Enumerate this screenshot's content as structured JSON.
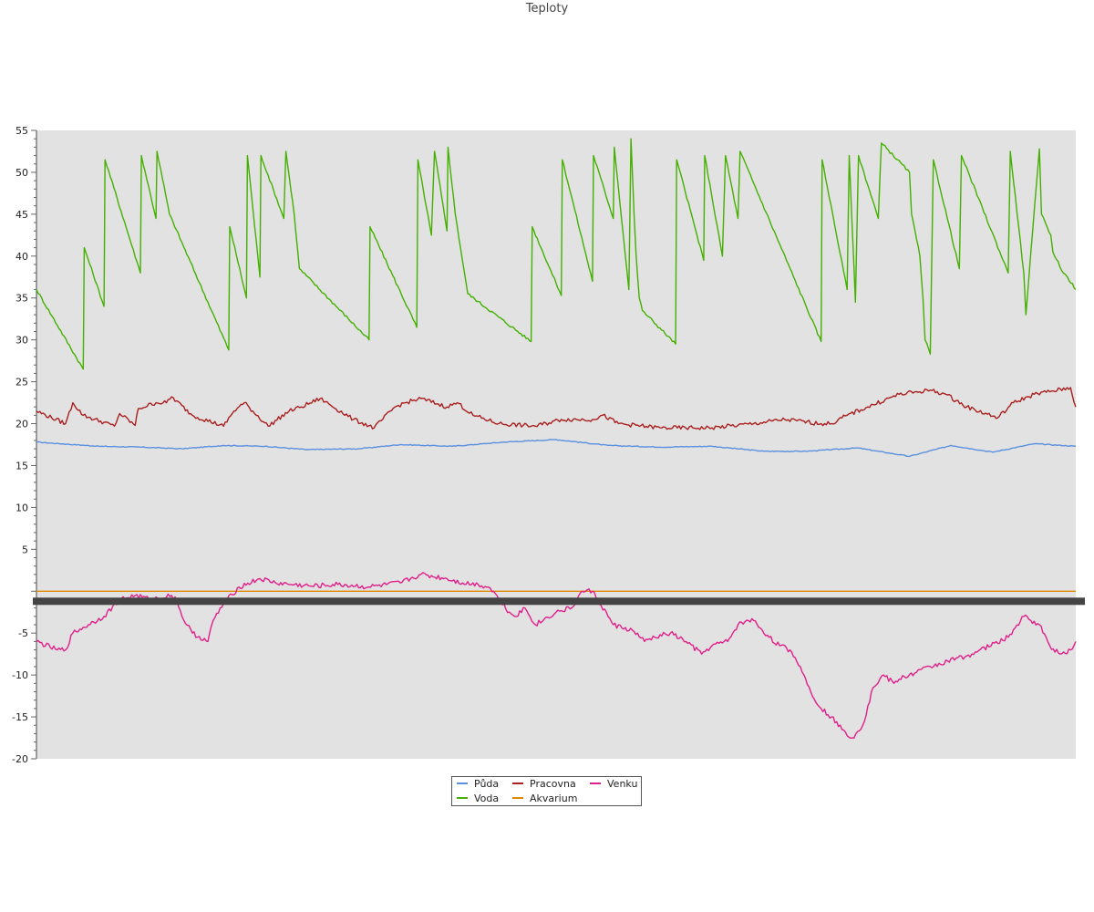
{
  "chart_data": {
    "type": "line",
    "title": "Teploty",
    "xlabel": "",
    "ylabel": "",
    "ylim": [
      -20,
      55
    ],
    "yticks": [
      55,
      50,
      45,
      40,
      35,
      30,
      25,
      20,
      15,
      10,
      5,
      -5,
      -10,
      -15,
      -20
    ],
    "grid": false,
    "legend_position": "bottom",
    "x_index_range": [
      0,
      100
    ],
    "series": [
      {
        "name": "Půda",
        "color": "#5b8fe0",
        "x": [
          0,
          6,
          10,
          14,
          18,
          22,
          26,
          31,
          35,
          40,
          45,
          50,
          55,
          60,
          65,
          70,
          74,
          79,
          84,
          88,
          92,
          96,
          100
        ],
        "values": [
          17.8,
          17.3,
          17.2,
          17.0,
          17.4,
          17.3,
          16.9,
          17.0,
          17.5,
          17.3,
          17.8,
          18.1,
          17.4,
          17.2,
          17.3,
          16.7,
          16.7,
          17.1,
          16.1,
          17.4,
          16.6,
          17.6,
          17.3
        ]
      },
      {
        "name": "Voda",
        "color": "#44b000",
        "x": [
          0,
          4.5,
          4.6,
          6.5,
          6.6,
          10.0,
          10.1,
          11.5,
          11.6,
          12.8,
          18.5,
          18.6,
          20.2,
          20.3,
          21.5,
          21.6,
          23.8,
          24.0,
          24.8,
          25.3,
          32.0,
          32.1,
          36.6,
          36.7,
          38.0,
          38.3,
          39.5,
          39.6,
          40.3,
          41.5,
          47.6,
          47.7,
          50.5,
          50.6,
          53.5,
          53.6,
          55.5,
          55.6,
          57.0,
          57.2,
          57.5,
          57.7,
          58.0,
          58.3,
          61.5,
          61.6,
          64.2,
          64.3,
          66.0,
          66.3,
          67.5,
          67.7,
          75.5,
          75.6,
          78.0,
          78.2,
          78.8,
          79.1,
          81.0,
          81.3,
          84.0,
          84.2,
          85.0,
          85.3,
          85.5,
          86.0,
          86.3,
          88.8,
          89.0,
          93.5,
          93.7,
          95.0,
          95.2,
          96.5,
          96.7,
          97.6,
          97.8,
          98.8,
          99.2,
          100
        ],
        "values": [
          36.0,
          26.5,
          41.0,
          34.0,
          51.5,
          38.0,
          52.0,
          44.5,
          52.5,
          45.0,
          28.8,
          43.5,
          35.0,
          52.0,
          37.5,
          52.0,
          44.5,
          52.5,
          45.0,
          38.5,
          30.0,
          43.5,
          31.5,
          51.5,
          42.5,
          52.5,
          43.0,
          53.0,
          45.0,
          35.5,
          29.8,
          43.5,
          35.3,
          51.5,
          37.0,
          52.0,
          44.5,
          53.0,
          36.0,
          54.0,
          45.0,
          40.0,
          35.0,
          33.5,
          29.5,
          51.5,
          39.5,
          52.0,
          40.0,
          52.0,
          44.5,
          52.5,
          29.8,
          51.5,
          36.0,
          52.0,
          34.5,
          52.0,
          44.5,
          53.5,
          50.0,
          45.0,
          40.0,
          35.0,
          30.0,
          28.3,
          51.5,
          38.5,
          52.0,
          38.0,
          52.5,
          38.0,
          33.0,
          52.8,
          45.0,
          42.5,
          40.5,
          38.0,
          37.5,
          36.0
        ]
      },
      {
        "name": "Pracovna",
        "color": "#aa1f1f",
        "x": [
          0,
          2.8,
          3.5,
          4.5,
          7.5,
          8.0,
          9.5,
          9.8,
          11.5,
          12.5,
          13.0,
          15.0,
          18.0,
          19.0,
          20.0,
          22.3,
          24.3,
          25.5,
          27.3,
          30.5,
          32.5,
          34.5,
          35.5,
          37.0,
          39.5,
          40.5,
          42.0,
          44.5,
          48.0,
          50.5,
          53.5,
          54.5,
          56.0,
          60.0,
          65.0,
          69.0,
          72.0,
          75.5,
          76.5,
          78.0,
          80.0,
          83.0,
          86.0,
          87.5,
          89.5,
          92.5,
          94.0,
          96.0,
          99.5,
          100
        ],
        "values": [
          21.5,
          20.0,
          22.5,
          21.0,
          19.7,
          21.2,
          19.8,
          21.8,
          22.5,
          22.5,
          23.2,
          21.0,
          19.7,
          21.5,
          22.5,
          19.7,
          21.5,
          22.0,
          23.0,
          20.5,
          19.5,
          22.0,
          22.5,
          23.0,
          22.0,
          22.5,
          21.0,
          20.0,
          19.7,
          20.5,
          20.5,
          21.0,
          20.0,
          19.5,
          19.5,
          20.0,
          20.5,
          20.0,
          20.0,
          21.0,
          22.0,
          23.5,
          24.0,
          23.5,
          22.0,
          20.7,
          22.5,
          23.5,
          24.3,
          22.0
        ]
      },
      {
        "name": "Akvarium",
        "color": "#e08a00",
        "x": [
          0,
          100
        ],
        "values": [
          0,
          0
        ]
      },
      {
        "name": "Venku",
        "color": "#e0208a",
        "x": [
          0,
          2.0,
          2.8,
          3.5,
          5.0,
          6.5,
          8.0,
          9.5,
          11.0,
          13.0,
          13.5,
          14.0,
          15.0,
          16.5,
          17.0,
          18.0,
          19.5,
          21.5,
          23.0,
          24.5,
          26.5,
          29.0,
          32.0,
          35.0,
          37.0,
          39.5,
          41.0,
          42.5,
          43.5,
          44.0,
          44.5,
          45.5,
          46.0,
          47.0,
          48.0,
          50.0,
          51.5,
          52.0,
          52.5,
          53.5,
          54.0,
          55.5,
          57.5,
          58.5,
          59.5,
          61.0,
          62.5,
          64.0,
          65.0,
          66.5,
          67.5,
          68.5,
          69.0,
          70.5,
          71.5,
          72.5,
          73.5,
          74.5,
          75.5,
          76.5,
          77.5,
          78.5,
          79.5,
          80.5,
          81.5,
          82.5,
          83.0,
          86.0,
          90.0,
          93.5,
          95.0,
          96.5,
          97.5,
          98.5,
          99.5,
          100
        ],
        "values": [
          -6.0,
          -7.0,
          -7.0,
          -5.0,
          -4.0,
          -3.0,
          -1.0,
          -0.5,
          -1.0,
          -0.5,
          -1.0,
          -3.0,
          -5.0,
          -6.0,
          -3.5,
          -1.5,
          0.5,
          1.5,
          1.0,
          0.8,
          0.6,
          0.8,
          0.5,
          1.0,
          2.0,
          1.5,
          1.0,
          0.8,
          0.5,
          0.0,
          -1.0,
          -2.5,
          -3.0,
          -2.0,
          -4.0,
          -2.5,
          -2.0,
          -1.0,
          0.0,
          0.0,
          -1.0,
          -4.0,
          -4.8,
          -6.0,
          -5.5,
          -5.0,
          -6.0,
          -7.5,
          -6.5,
          -6.0,
          -4.0,
          -3.5,
          -3.5,
          -5.5,
          -6.5,
          -7.0,
          -9.0,
          -12.0,
          -14.0,
          -15.0,
          -16.5,
          -17.5,
          -16.0,
          -11.5,
          -10.0,
          -11.0,
          -10.5,
          -9.0,
          -7.5,
          -5.5,
          -3.0,
          -4.0,
          -6.5,
          -7.5,
          -7.0,
          -6.0
        ]
      }
    ]
  }
}
